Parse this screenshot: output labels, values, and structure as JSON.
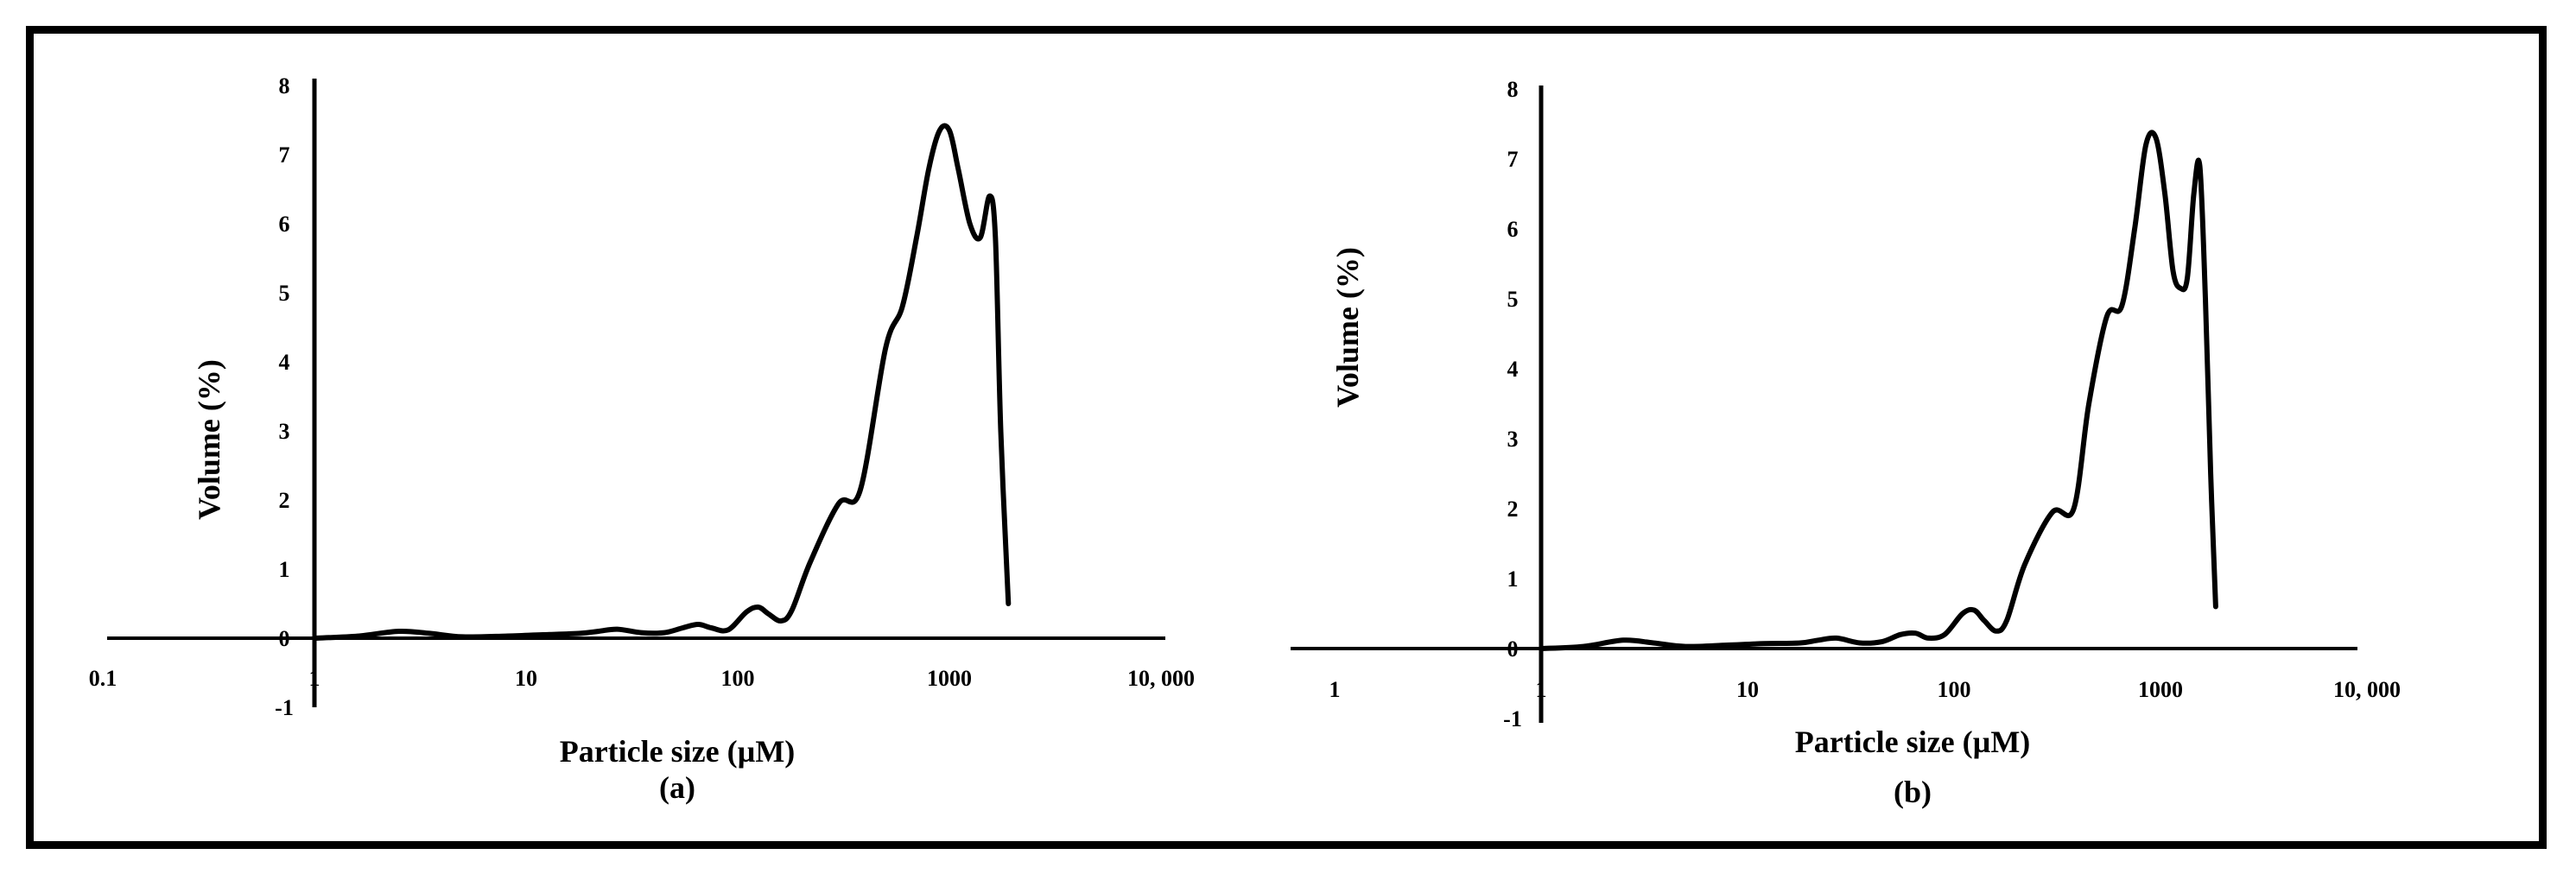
{
  "chart_data": [
    {
      "type": "line",
      "panel_label": "(a)",
      "xlabel": "Particle size (µM)",
      "ylabel": "Volume (%)",
      "xscale": "log",
      "xlim": [
        0.1,
        10000
      ],
      "ylim": [
        -1,
        8
      ],
      "x_ticks": [
        "0.1",
        "1",
        "10",
        "100",
        "1000",
        "10, 000"
      ],
      "y_ticks": [
        "-1",
        "0",
        "1",
        "2",
        "3",
        "4",
        "5",
        "6",
        "7",
        "8"
      ],
      "legend": "none",
      "grid": false,
      "series": [
        {
          "color": "#000000",
          "x": [
            1,
            1.6,
            2.5,
            3.5,
            5,
            8,
            12,
            18,
            22,
            27,
            35,
            45,
            55,
            65,
            75,
            90,
            110,
            125,
            140,
            160,
            180,
            220,
            300,
            380,
            500,
            600,
            700,
            800,
            900,
            1000,
            1100,
            1250,
            1400,
            1550,
            1650,
            1750,
            1900
          ],
          "y": [
            0,
            0.03,
            0.1,
            0.07,
            0.02,
            0.03,
            0.05,
            0.07,
            0.1,
            0.13,
            0.08,
            0.08,
            0.15,
            0.2,
            0.15,
            0.12,
            0.38,
            0.45,
            0.35,
            0.25,
            0.4,
            1.1,
            1.95,
            2.15,
            4.2,
            4.8,
            5.8,
            6.8,
            7.35,
            7.35,
            6.8,
            6.0,
            5.8,
            6.4,
            5.8,
            3.0,
            0.5
          ]
        }
      ]
    },
    {
      "type": "line",
      "panel_label": "(b)",
      "xlabel": "Particle size (µM)",
      "ylabel": "Volume (%)",
      "xscale": "log",
      "xlim": [
        0.1,
        10000
      ],
      "ylim": [
        -1,
        8
      ],
      "x_ticks": [
        "1",
        "1",
        "10",
        "100",
        "1000",
        "10, 000"
      ],
      "y_ticks": [
        "-1",
        "0",
        "1",
        "2",
        "3",
        "4",
        "5",
        "6",
        "7",
        "8"
      ],
      "legend": "none",
      "grid": false,
      "series": [
        {
          "color": "#000000",
          "x": [
            1,
            1.6,
            2.5,
            3.5,
            5,
            8,
            12,
            18,
            22,
            27,
            35,
            45,
            55,
            65,
            75,
            90,
            110,
            125,
            140,
            160,
            180,
            220,
            300,
            380,
            450,
            550,
            650,
            750,
            850,
            950,
            1050,
            1150,
            1250,
            1350,
            1450,
            1550,
            1650,
            1750,
            1850
          ],
          "y": [
            0,
            0.03,
            0.12,
            0.08,
            0.03,
            0.05,
            0.07,
            0.08,
            0.12,
            0.15,
            0.08,
            0.1,
            0.2,
            0.22,
            0.15,
            0.2,
            0.5,
            0.55,
            0.4,
            0.25,
            0.4,
            1.2,
            1.95,
            2.0,
            3.5,
            4.75,
            4.9,
            6.0,
            7.2,
            7.3,
            6.5,
            5.4,
            5.15,
            5.3,
            6.5,
            6.9,
            5.0,
            2.5,
            0.6
          ]
        }
      ]
    }
  ]
}
